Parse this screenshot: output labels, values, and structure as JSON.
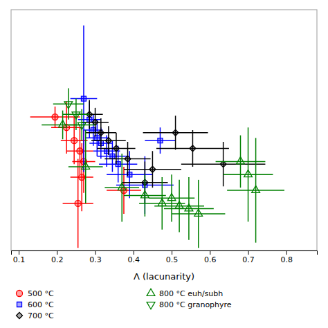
{
  "chart_data": {
    "type": "scatter",
    "xlabel": "Λ (lacunarity)",
    "xlim": [
      0.08,
      0.88
    ],
    "ylim": [
      2.18,
      3.1
    ],
    "xticks": [
      0.1,
      0.2,
      0.3,
      0.4,
      0.5,
      0.6,
      0.7,
      0.8
    ],
    "tick_labels": "x",
    "legend": "lower left",
    "series": [
      {
        "name": "500 °C",
        "color": "red",
        "marker": "circle",
        "x": [
          0.195,
          0.225,
          0.245,
          0.26,
          0.27,
          0.265,
          0.375,
          0.255
        ],
        "values": [
          2.69,
          2.65,
          2.6,
          2.56,
          2.52,
          2.46,
          2.41,
          2.36
        ],
        "xerr": [
          0.065,
          0.04,
          0.035,
          0.035,
          0.03,
          0.03,
          0.045,
          0.04
        ],
        "yerr": [
          0.04,
          0.1,
          0.09,
          0.09,
          0.12,
          0.13,
          0.09,
          0.17
        ]
      },
      {
        "name": "600 °C",
        "color": "blue",
        "marker": "square",
        "x": [
          0.27,
          0.285,
          0.295,
          0.305,
          0.315,
          0.33,
          0.345,
          0.36,
          0.39,
          0.43,
          0.47
        ],
        "values": [
          2.76,
          2.68,
          2.64,
          2.61,
          2.59,
          2.56,
          2.54,
          2.51,
          2.47,
          2.43,
          2.6
        ],
        "xerr": [
          0.035,
          0.03,
          0.025,
          0.03,
          0.03,
          0.035,
          0.04,
          0.05,
          0.06,
          0.075,
          0.04
        ],
        "yerr": [
          0.28,
          0.07,
          0.06,
          0.07,
          0.06,
          0.06,
          0.06,
          0.07,
          0.09,
          0.11,
          0.05
        ]
      },
      {
        "name": "700 °C",
        "color": "black",
        "marker": "diamond",
        "x": [
          0.285,
          0.3,
          0.315,
          0.335,
          0.355,
          0.385,
          0.45,
          0.51,
          0.555,
          0.43,
          0.635
        ],
        "values": [
          2.7,
          2.67,
          2.63,
          2.6,
          2.57,
          2.53,
          2.49,
          2.63,
          2.57,
          2.44,
          2.51
        ],
        "xerr": [
          0.035,
          0.035,
          0.04,
          0.045,
          0.05,
          0.06,
          0.075,
          0.085,
          0.095,
          0.06,
          0.11
        ],
        "yerr": [
          0.055,
          0.055,
          0.055,
          0.055,
          0.06,
          0.065,
          0.07,
          0.065,
          0.07,
          0.08,
          0.085
        ]
      },
      {
        "name": "800 °C euh/subh",
        "color": "green",
        "marker": "triangle-up-open",
        "x": [
          0.215,
          0.275,
          0.37,
          0.43,
          0.475,
          0.5,
          0.52,
          0.545,
          0.57,
          0.68,
          0.7,
          0.72
        ],
        "values": [
          2.66,
          2.5,
          2.42,
          2.39,
          2.36,
          2.38,
          2.35,
          2.34,
          2.32,
          2.52,
          2.47,
          2.41
        ],
        "xerr": [
          0.055,
          0.045,
          0.045,
          0.055,
          0.06,
          0.06,
          0.065,
          0.065,
          0.07,
          0.065,
          0.065,
          0.075
        ],
        "yerr": [
          0.055,
          0.14,
          0.13,
          0.08,
          0.1,
          0.09,
          0.1,
          0.12,
          0.13,
          0.1,
          0.18,
          0.2
        ]
      },
      {
        "name": "800 °C granophyre",
        "color": "green",
        "marker": "triangle-down-open",
        "x": [
          0.23,
          0.25,
          0.265
        ],
        "values": [
          2.74,
          2.7,
          2.66
        ],
        "xerr": [
          0.04,
          0.035,
          0.035
        ],
        "yerr": [
          0.06,
          0.06,
          0.06
        ]
      }
    ]
  }
}
